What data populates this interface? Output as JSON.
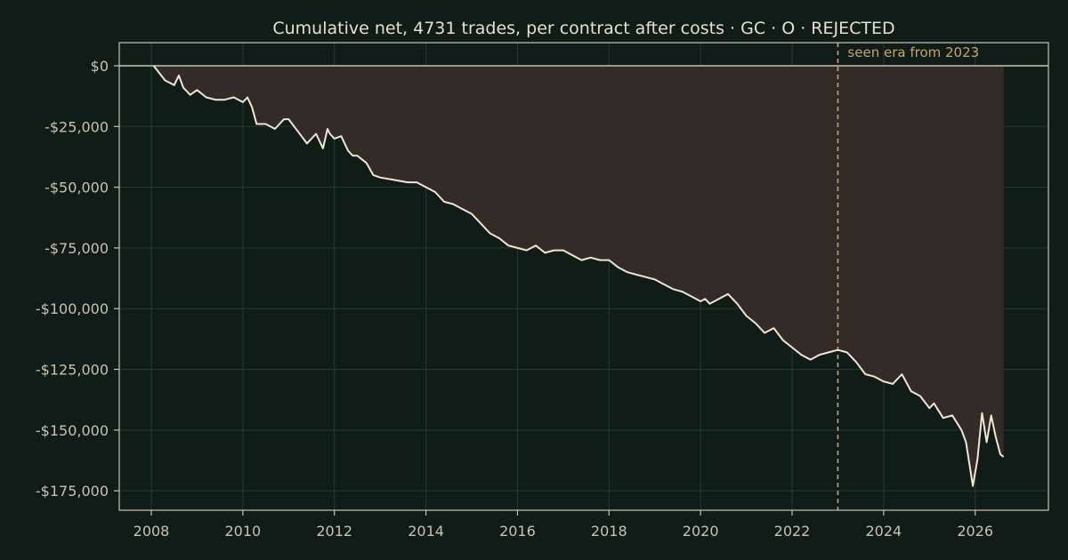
{
  "colors": {
    "background": "#0f1c17",
    "axis": "#c9c2b1",
    "grid": "#2a3a33",
    "line": "#efe6d3",
    "fill": "#322b27",
    "zero_line": "#c9c2b1",
    "marker": "#c9a46a"
  },
  "chart_data": {
    "type": "line",
    "title": "Cumulative net, 4731 trades, per contract after costs  ·  GC · O · REJECTED",
    "xlabel": "",
    "ylabel": "",
    "xlim": [
      2007.3,
      2027.6
    ],
    "ylim": [
      -183000,
      9500
    ],
    "x_ticks": [
      2008,
      2010,
      2012,
      2014,
      2016,
      2018,
      2020,
      2022,
      2024,
      2026
    ],
    "x_tick_labels": [
      "2008",
      "2010",
      "2012",
      "2014",
      "2016",
      "2018",
      "2020",
      "2022",
      "2024",
      "2026"
    ],
    "y_ticks": [
      0,
      -25000,
      -50000,
      -75000,
      -100000,
      -125000,
      -150000,
      -175000
    ],
    "y_tick_labels": [
      "$0",
      "-$25,000",
      "-$50,000",
      "-$75,000",
      "-$100,000",
      "-$125,000",
      "-$150,000",
      "-$175,000"
    ],
    "grid": true,
    "fill_to_zero": true,
    "annotation": {
      "x": 2023.0,
      "text": "seen era from 2023"
    },
    "series": [
      {
        "x": [
          2008.05,
          2008.3,
          2008.5,
          2008.6,
          2008.7,
          2008.85,
          2009.0,
          2009.2,
          2009.4,
          2009.6,
          2009.8,
          2010.0,
          2010.1,
          2010.2,
          2010.3,
          2010.5,
          2010.7,
          2010.9,
          2011.0,
          2011.2,
          2011.4,
          2011.6,
          2011.75,
          2011.85,
          2011.9,
          2012.0,
          2012.15,
          2012.3,
          2012.4,
          2012.5,
          2012.7,
          2012.85,
          2013.0,
          2013.3,
          2013.6,
          2013.8,
          2014.0,
          2014.2,
          2014.4,
          2014.6,
          2014.8,
          2015.0,
          2015.2,
          2015.4,
          2015.6,
          2015.8,
          2016.0,
          2016.2,
          2016.4,
          2016.6,
          2016.8,
          2017.0,
          2017.2,
          2017.4,
          2017.6,
          2017.8,
          2018.0,
          2018.2,
          2018.4,
          2018.6,
          2018.8,
          2019.0,
          2019.2,
          2019.4,
          2019.6,
          2019.8,
          2020.0,
          2020.1,
          2020.2,
          2020.4,
          2020.6,
          2020.8,
          2021.0,
          2021.2,
          2021.4,
          2021.6,
          2021.8,
          2022.0,
          2022.2,
          2022.4,
          2022.6,
          2022.8,
          2023.0,
          2023.2,
          2023.4,
          2023.6,
          2023.8,
          2024.0,
          2024.2,
          2024.4,
          2024.6,
          2024.8,
          2025.0,
          2025.1,
          2025.3,
          2025.5,
          2025.7,
          2025.8,
          2025.95,
          2026.05,
          2026.15,
          2026.25,
          2026.35,
          2026.45,
          2026.55,
          2026.62
        ],
        "y": [
          0,
          -6000,
          -8000,
          -4000,
          -9000,
          -12000,
          -10000,
          -13000,
          -14000,
          -14000,
          -13000,
          -15000,
          -13000,
          -17000,
          -24000,
          -24000,
          -26000,
          -22000,
          -22000,
          -27000,
          -32000,
          -28000,
          -34000,
          -26000,
          -28000,
          -30000,
          -29000,
          -35000,
          -37000,
          -37000,
          -40000,
          -45000,
          -46000,
          -47000,
          -48000,
          -48000,
          -50000,
          -52000,
          -56000,
          -57000,
          -59000,
          -61000,
          -65000,
          -69000,
          -71000,
          -74000,
          -75000,
          -76000,
          -74000,
          -77000,
          -76000,
          -76000,
          -78000,
          -80000,
          -79000,
          -80000,
          -80000,
          -83000,
          -85000,
          -86000,
          -87000,
          -88000,
          -90000,
          -92000,
          -93000,
          -95000,
          -97000,
          -96000,
          -98000,
          -96000,
          -94000,
          -98000,
          -103000,
          -106000,
          -110000,
          -108000,
          -113000,
          -116000,
          -119000,
          -121000,
          -119000,
          -118000,
          -117000,
          -118000,
          -122000,
          -127000,
          -128000,
          -130000,
          -131000,
          -127000,
          -134000,
          -136000,
          -141000,
          -139000,
          -145000,
          -144000,
          -150000,
          -155000,
          -173000,
          -162000,
          -143000,
          -155000,
          -144000,
          -153000,
          -160000,
          -161000
        ]
      }
    ]
  }
}
